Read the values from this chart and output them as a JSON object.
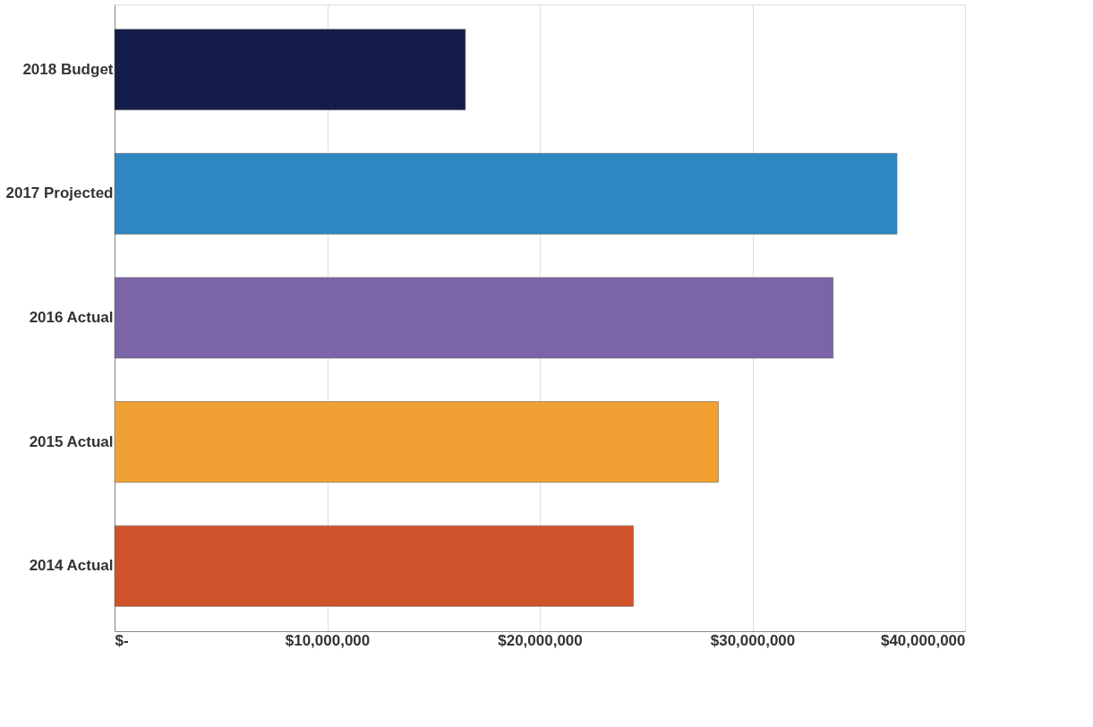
{
  "chart_data": {
    "type": "bar",
    "orientation": "horizontal",
    "categories": [
      "2018 Budget",
      "2017 Projected",
      "2016 Actual",
      "2015 Actual",
      "2014 Actual"
    ],
    "values": [
      16500000,
      36800000,
      33800000,
      28400000,
      24400000
    ],
    "colors": [
      "#141c4a",
      "#2f87c2",
      "#7a65a8",
      "#f0a032",
      "#d0532b"
    ],
    "xlim": [
      0,
      40000000
    ],
    "xticks": [
      {
        "value": 0,
        "label": "$-"
      },
      {
        "value": 10000000,
        "label": "$10,000,000"
      },
      {
        "value": 20000000,
        "label": "$20,000,000"
      },
      {
        "value": 30000000,
        "label": "$30,000,000"
      },
      {
        "value": 40000000,
        "label": "$40,000,000"
      }
    ],
    "grid": "x"
  }
}
